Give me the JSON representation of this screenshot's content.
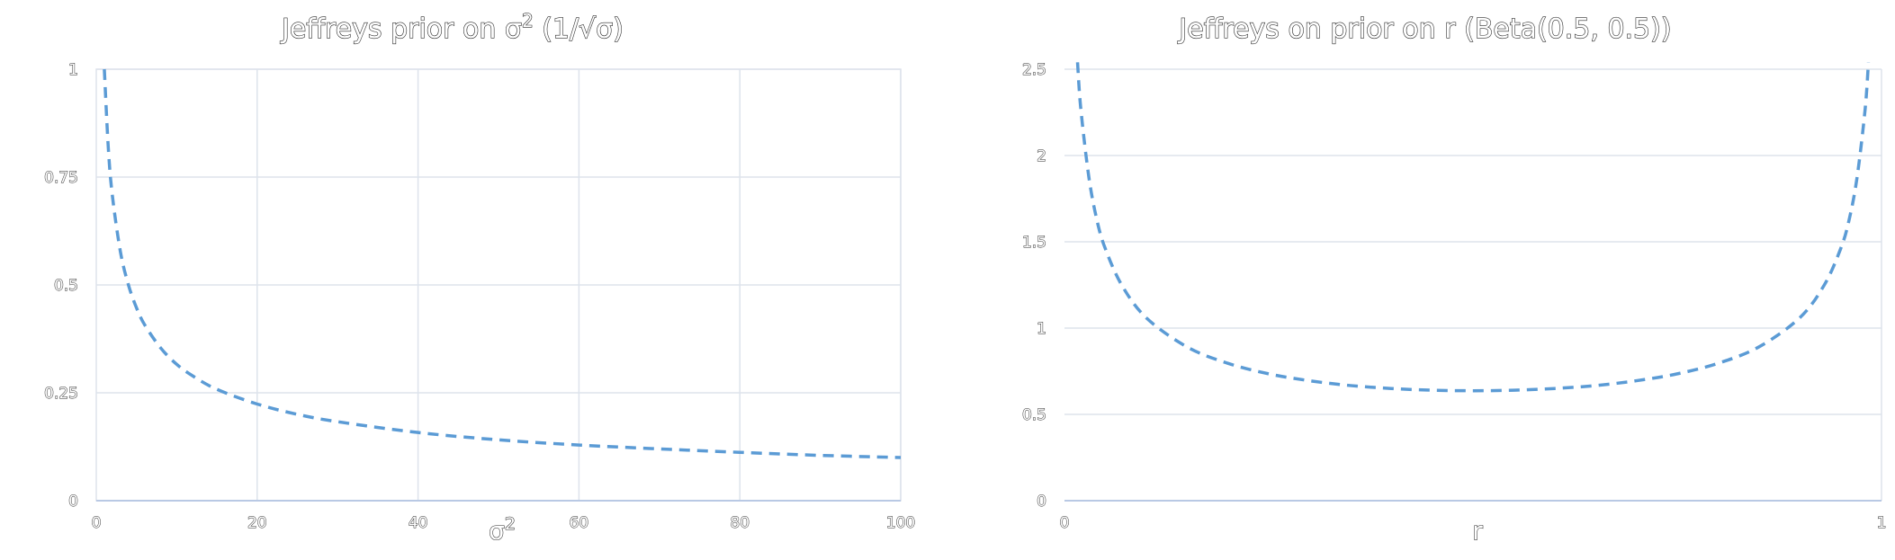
{
  "colors": {
    "series": "#5b9bd5"
  },
  "chart_data": [
    {
      "type": "line",
      "title": "Jeffreys prior on σ² (1/√σ)",
      "title_main": "Jeffreys prior on σ",
      "title_sup": "2",
      "title_rest": " (1/√σ)",
      "xlabel": "σ²",
      "xlabel_main": "σ",
      "xlabel_sup": "2",
      "ylabel": "",
      "xlim": [
        0,
        100
      ],
      "ylim": [
        0,
        1
      ],
      "xticks": [
        "0",
        "20",
        "40",
        "60",
        "80",
        "100"
      ],
      "yticks": [
        "0",
        "0.25",
        "0.5",
        "0.75",
        "1"
      ],
      "grid": "both",
      "series": [
        {
          "x": [
            1,
            1.5,
            2,
            3,
            4,
            5,
            6,
            8,
            10,
            12,
            15,
            20,
            25,
            30,
            40,
            50,
            60,
            70,
            80,
            90,
            100
          ],
          "y": [
            1.0,
            0.816,
            0.707,
            0.577,
            0.5,
            0.447,
            0.408,
            0.354,
            0.316,
            0.289,
            0.258,
            0.224,
            0.2,
            0.183,
            0.158,
            0.141,
            0.129,
            0.12,
            0.112,
            0.105,
            0.1
          ]
        }
      ]
    },
    {
      "type": "line",
      "title": "Jeffreys on prior on r (Beta(0.5, 0.5))",
      "xlabel": "r",
      "ylabel": "",
      "xlim": [
        0,
        1
      ],
      "ylim": [
        0,
        2.5
      ],
      "xticks": [
        "0",
        "1"
      ],
      "yticks": [
        "0",
        "0.5",
        "1",
        "1.5",
        "2",
        "2.5"
      ],
      "grid": "horizontal",
      "series": [
        {
          "x": [
            0.016,
            0.02,
            0.03,
            0.04,
            0.05,
            0.07,
            0.1,
            0.15,
            0.2,
            0.25,
            0.3,
            0.35,
            0.4,
            0.45,
            0.5,
            0.55,
            0.6,
            0.65,
            0.7,
            0.75,
            0.8,
            0.85,
            0.9,
            0.93,
            0.95,
            0.96,
            0.97,
            0.98,
            0.984
          ],
          "y": [
            2.54,
            2.27,
            1.87,
            1.62,
            1.46,
            1.25,
            1.06,
            0.891,
            0.796,
            0.735,
            0.695,
            0.667,
            0.65,
            0.64,
            0.637,
            0.64,
            0.65,
            0.667,
            0.695,
            0.735,
            0.796,
            0.891,
            1.06,
            1.25,
            1.46,
            1.62,
            1.87,
            2.27,
            2.54
          ]
        }
      ]
    }
  ]
}
